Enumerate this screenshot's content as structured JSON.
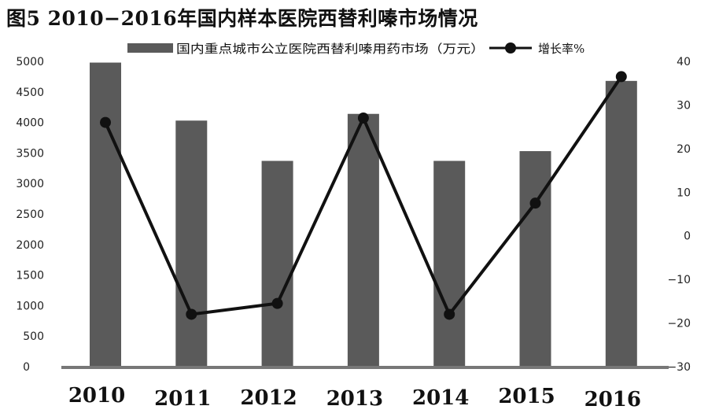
{
  "chart_data": {
    "type": "bar+line",
    "title": "图5  2010−2016年国内样本医院西替利嗪市场情况",
    "categories": [
      "2010",
      "2011",
      "2012",
      "2013",
      "2014",
      "2015",
      "2016"
    ],
    "series": [
      {
        "name": "国内重点城市公立医院西替利嗪用药市场（万元）",
        "type": "bar",
        "axis": "left",
        "values": [
          4980,
          4030,
          3370,
          4140,
          3370,
          3530,
          4680
        ]
      },
      {
        "name": "增长率%",
        "type": "line",
        "axis": "right",
        "values": [
          26,
          -18,
          -15.5,
          27,
          -18,
          7.5,
          36.5
        ]
      }
    ],
    "y_left": {
      "ylim": [
        0,
        5000
      ],
      "ticks": [
        0,
        500,
        1000,
        1500,
        2000,
        2500,
        3000,
        3500,
        4000,
        4500,
        5000
      ]
    },
    "y_right": {
      "ylim": [
        -30,
        40
      ],
      "ticks": [
        -30,
        -20,
        -10,
        0,
        10,
        20,
        30,
        40
      ]
    },
    "legend_position": "top",
    "colors": {
      "bar": "#5a5a5a",
      "line": "#111111",
      "axis": "#777777"
    }
  }
}
